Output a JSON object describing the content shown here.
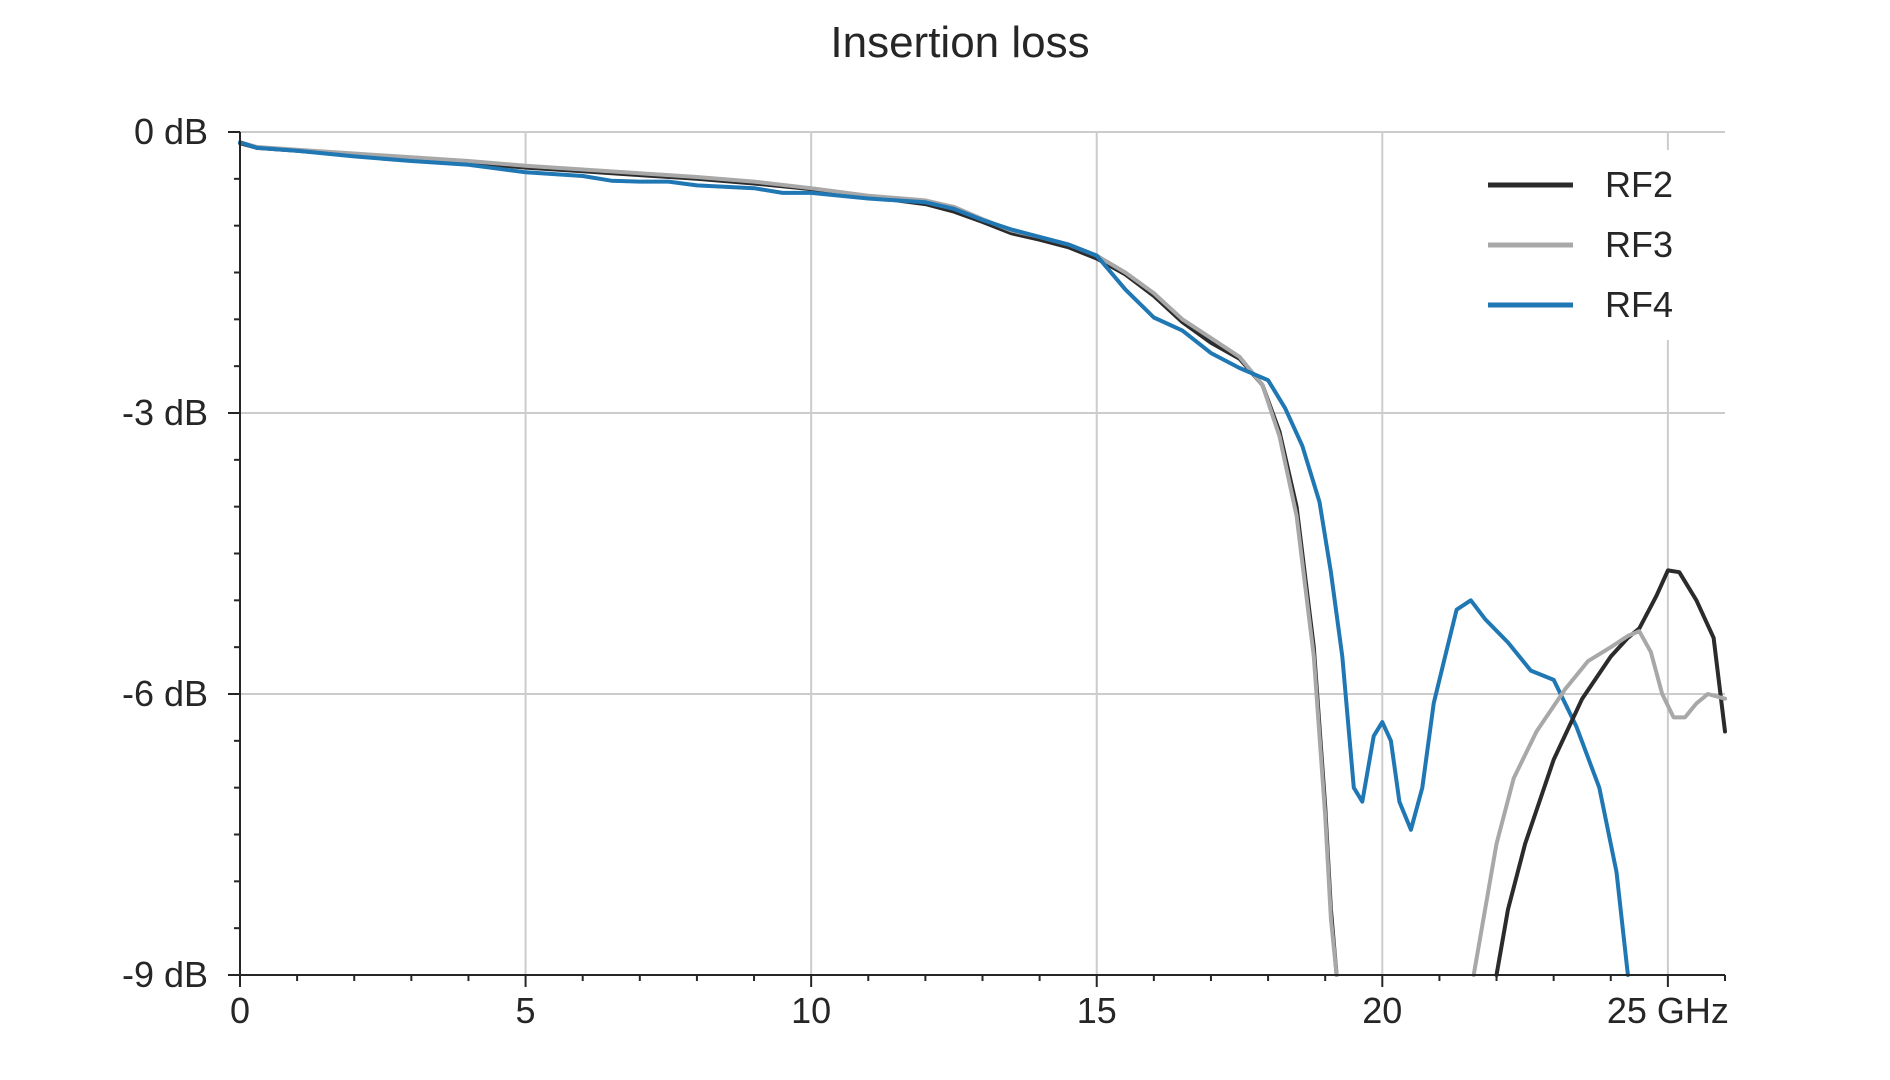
{
  "chart_data": {
    "type": "line",
    "title": "Insertion loss",
    "xlabel": "",
    "ylabel": "",
    "xlim": [
      0,
      26
    ],
    "ylim": [
      -9,
      0
    ],
    "x_ticks": [
      0,
      5,
      10,
      15,
      20,
      25
    ],
    "x_tick_labels": [
      "0",
      "5",
      "10",
      "15",
      "20",
      "25 GHz"
    ],
    "x_minor_step": 1,
    "y_ticks": [
      0,
      -3,
      -6,
      -9
    ],
    "y_tick_labels": [
      "0 dB",
      "-3 dB",
      "-6 dB",
      "-9 dB"
    ],
    "y_minor_step": 0.5,
    "grid": true,
    "legend_position": "top-right",
    "series": [
      {
        "name": "RF2",
        "color": "#2b2b2b",
        "points": [
          [
            0,
            -0.12
          ],
          [
            0.3,
            -0.17
          ],
          [
            1,
            -0.2
          ],
          [
            2,
            -0.25
          ],
          [
            3,
            -0.29
          ],
          [
            4,
            -0.33
          ],
          [
            5,
            -0.38
          ],
          [
            6,
            -0.42
          ],
          [
            7,
            -0.46
          ],
          [
            8,
            -0.5
          ],
          [
            9,
            -0.55
          ],
          [
            10,
            -0.61
          ],
          [
            11,
            -0.69
          ],
          [
            12,
            -0.77
          ],
          [
            12.5,
            -0.85
          ],
          [
            13,
            -0.96
          ],
          [
            13.5,
            -1.08
          ],
          [
            14,
            -1.15
          ],
          [
            14.5,
            -1.23
          ],
          [
            15,
            -1.35
          ],
          [
            15.5,
            -1.52
          ],
          [
            16,
            -1.75
          ],
          [
            16.5,
            -2.03
          ],
          [
            17,
            -2.25
          ],
          [
            17.5,
            -2.42
          ],
          [
            17.9,
            -2.7
          ],
          [
            18.2,
            -3.2
          ],
          [
            18.5,
            -4.0
          ],
          [
            18.8,
            -5.5
          ],
          [
            19.0,
            -7.2
          ],
          [
            19.1,
            -8.3
          ],
          [
            19.2,
            -9.0
          ]
        ]
      },
      {
        "name": "RF3",
        "color": "#a8a8a8",
        "points": [
          [
            0,
            -0.11
          ],
          [
            0.3,
            -0.16
          ],
          [
            1,
            -0.19
          ],
          [
            2,
            -0.23
          ],
          [
            3,
            -0.27
          ],
          [
            4,
            -0.31
          ],
          [
            5,
            -0.36
          ],
          [
            6,
            -0.4
          ],
          [
            7,
            -0.44
          ],
          [
            8,
            -0.48
          ],
          [
            9,
            -0.53
          ],
          [
            10,
            -0.6
          ],
          [
            11,
            -0.68
          ],
          [
            12,
            -0.73
          ],
          [
            12.5,
            -0.8
          ],
          [
            13,
            -0.93
          ],
          [
            13.5,
            -1.05
          ],
          [
            14,
            -1.12
          ],
          [
            14.5,
            -1.2
          ],
          [
            15,
            -1.32
          ],
          [
            15.5,
            -1.5
          ],
          [
            16,
            -1.72
          ],
          [
            16.5,
            -2.0
          ],
          [
            17,
            -2.2
          ],
          [
            17.5,
            -2.4
          ],
          [
            17.9,
            -2.7
          ],
          [
            18.2,
            -3.25
          ],
          [
            18.5,
            -4.1
          ],
          [
            18.8,
            -5.6
          ],
          [
            19.0,
            -7.3
          ],
          [
            19.1,
            -8.4
          ],
          [
            19.2,
            -9.0
          ]
        ]
      },
      {
        "name": "RF4",
        "color": "#1f77b4",
        "points": [
          [
            0,
            -0.11
          ],
          [
            0.3,
            -0.17
          ],
          [
            1,
            -0.2
          ],
          [
            2,
            -0.26
          ],
          [
            3,
            -0.31
          ],
          [
            4,
            -0.35
          ],
          [
            5,
            -0.43
          ],
          [
            6,
            -0.47
          ],
          [
            6.5,
            -0.52
          ],
          [
            7,
            -0.53
          ],
          [
            7.5,
            -0.53
          ],
          [
            8,
            -0.57
          ],
          [
            9,
            -0.6
          ],
          [
            9.5,
            -0.65
          ],
          [
            10,
            -0.65
          ],
          [
            11,
            -0.71
          ],
          [
            12,
            -0.75
          ],
          [
            12.5,
            -0.82
          ],
          [
            13,
            -0.94
          ],
          [
            13.5,
            -1.04
          ],
          [
            14,
            -1.12
          ],
          [
            14.5,
            -1.2
          ],
          [
            15,
            -1.32
          ],
          [
            15.5,
            -1.68
          ],
          [
            16,
            -1.98
          ],
          [
            16.5,
            -2.12
          ],
          [
            17,
            -2.36
          ],
          [
            17.5,
            -2.52
          ],
          [
            18,
            -2.65
          ],
          [
            18.3,
            -2.95
          ],
          [
            18.6,
            -3.35
          ],
          [
            18.9,
            -3.95
          ],
          [
            19.1,
            -4.7
          ],
          [
            19.3,
            -5.6
          ],
          [
            19.5,
            -7.0
          ],
          [
            19.65,
            -7.15
          ],
          [
            19.85,
            -6.45
          ],
          [
            20.0,
            -6.3
          ],
          [
            20.15,
            -6.5
          ],
          [
            20.3,
            -7.15
          ],
          [
            20.5,
            -7.45
          ],
          [
            20.7,
            -7.0
          ],
          [
            20.9,
            -6.1
          ],
          [
            21.1,
            -5.6
          ],
          [
            21.3,
            -5.1
          ],
          [
            21.55,
            -5.0
          ],
          [
            21.8,
            -5.2
          ],
          [
            22.2,
            -5.45
          ],
          [
            22.6,
            -5.75
          ],
          [
            23.0,
            -5.85
          ],
          [
            23.4,
            -6.35
          ],
          [
            23.8,
            -7.0
          ],
          [
            24.1,
            -7.9
          ],
          [
            24.3,
            -9.0
          ]
        ]
      }
    ],
    "extra_segments": [
      {
        "series": "RF2",
        "points": [
          [
            22.0,
            -9.0
          ],
          [
            22.2,
            -8.3
          ],
          [
            22.5,
            -7.6
          ],
          [
            23.0,
            -6.7
          ],
          [
            23.5,
            -6.05
          ],
          [
            24.0,
            -5.6
          ],
          [
            24.3,
            -5.4
          ],
          [
            24.5,
            -5.3
          ],
          [
            24.8,
            -4.95
          ],
          [
            25.0,
            -4.68
          ],
          [
            25.2,
            -4.7
          ],
          [
            25.5,
            -5.0
          ],
          [
            25.8,
            -5.4
          ],
          [
            26.0,
            -6.4
          ]
        ]
      },
      {
        "series": "RF3",
        "points": [
          [
            21.6,
            -9.0
          ],
          [
            21.8,
            -8.3
          ],
          [
            22.0,
            -7.6
          ],
          [
            22.3,
            -6.9
          ],
          [
            22.7,
            -6.4
          ],
          [
            23.2,
            -5.95
          ],
          [
            23.6,
            -5.65
          ],
          [
            24.0,
            -5.5
          ],
          [
            24.3,
            -5.38
          ],
          [
            24.5,
            -5.33
          ],
          [
            24.7,
            -5.55
          ],
          [
            24.9,
            -6.0
          ],
          [
            25.1,
            -6.25
          ],
          [
            25.3,
            -6.25
          ],
          [
            25.5,
            -6.1
          ],
          [
            25.7,
            -6.0
          ],
          [
            26.0,
            -6.05
          ]
        ]
      }
    ]
  }
}
